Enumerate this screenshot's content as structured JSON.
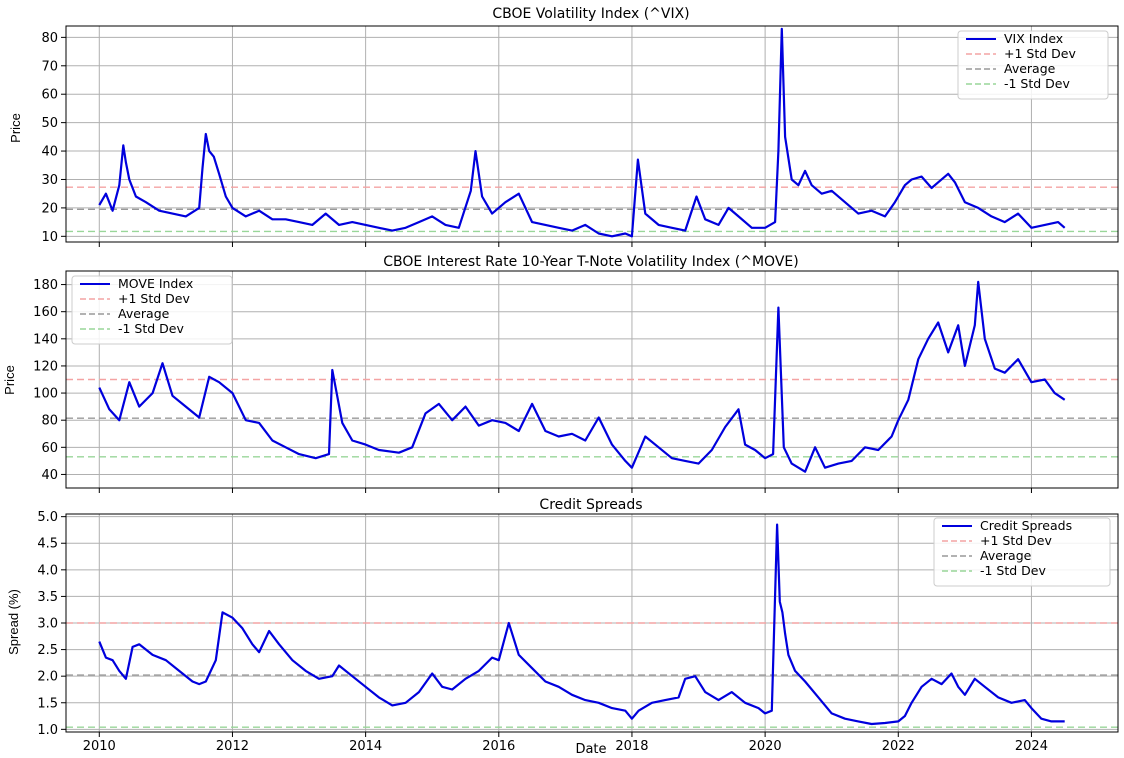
{
  "chart_data": [
    {
      "type": "line",
      "title": "CBOE Volatility Index (^VIX)",
      "xlabel": "",
      "ylabel": "Price",
      "xlim": [
        2009.5,
        2025.3
      ],
      "ylim": [
        8,
        84
      ],
      "yticks": [
        10,
        20,
        30,
        40,
        50,
        60,
        70,
        80
      ],
      "xticks": [
        2010,
        2012,
        2014,
        2016,
        2018,
        2020,
        2022,
        2024
      ],
      "show_xtick_labels": false,
      "grid": true,
      "legend_position": "upper right",
      "legend": [
        "VIX Index",
        "+1 Std Dev",
        "Average",
        "-1 Std Dev"
      ],
      "reference_lines": [
        {
          "name": "+1 Std Dev",
          "value": 27.3,
          "color": "#f4a3a3"
        },
        {
          "name": "Average",
          "value": 19.5,
          "color": "#999999"
        },
        {
          "name": "-1 Std Dev",
          "value": 11.7,
          "color": "#99d699"
        }
      ],
      "series": [
        {
          "name": "VIX Index",
          "color": "#0000dd",
          "x": [
            2010.0,
            2010.1,
            2010.2,
            2010.3,
            2010.36,
            2010.4,
            2010.45,
            2010.55,
            2010.7,
            2010.9,
            2011.1,
            2011.3,
            2011.5,
            2011.55,
            2011.6,
            2011.65,
            2011.72,
            2011.8,
            2011.9,
            2012.0,
            2012.2,
            2012.4,
            2012.6,
            2012.8,
            2013.0,
            2013.2,
            2013.4,
            2013.6,
            2013.8,
            2014.0,
            2014.2,
            2014.4,
            2014.6,
            2014.8,
            2015.0,
            2015.2,
            2015.4,
            2015.58,
            2015.65,
            2015.75,
            2015.9,
            2016.1,
            2016.3,
            2016.5,
            2016.7,
            2016.9,
            2017.1,
            2017.3,
            2017.5,
            2017.7,
            2017.9,
            2018.0,
            2018.09,
            2018.2,
            2018.4,
            2018.6,
            2018.8,
            2018.97,
            2019.1,
            2019.3,
            2019.45,
            2019.6,
            2019.8,
            2020.0,
            2020.15,
            2020.2,
            2020.25,
            2020.3,
            2020.4,
            2020.5,
            2020.6,
            2020.7,
            2020.85,
            2021.0,
            2021.2,
            2021.4,
            2021.6,
            2021.8,
            2021.95,
            2022.1,
            2022.2,
            2022.35,
            2022.5,
            2022.6,
            2022.75,
            2022.85,
            2023.0,
            2023.2,
            2023.4,
            2023.6,
            2023.8,
            2024.0,
            2024.2,
            2024.4,
            2024.5
          ],
          "values": [
            21,
            25,
            19,
            28,
            42,
            36,
            30,
            24,
            22,
            19,
            18,
            17,
            20,
            34,
            46,
            40,
            38,
            32,
            24,
            20,
            17,
            19,
            16,
            16,
            15,
            14,
            18,
            14,
            15,
            14,
            13,
            12,
            13,
            15,
            17,
            14,
            13,
            26,
            40,
            24,
            18,
            22,
            25,
            15,
            14,
            13,
            12,
            14,
            11,
            10,
            11,
            10,
            37,
            18,
            14,
            13,
            12,
            24,
            16,
            14,
            20,
            17,
            13,
            13,
            15,
            40,
            83,
            45,
            30,
            28,
            33,
            28,
            25,
            26,
            22,
            18,
            19,
            17,
            22,
            28,
            30,
            31,
            27,
            29,
            32,
            29,
            22,
            20,
            17,
            15,
            18,
            13,
            14,
            15,
            13
          ]
        }
      ]
    },
    {
      "type": "line",
      "title": "CBOE Interest Rate 10-Year T-Note Volatility Index (^MOVE)",
      "xlabel": "",
      "ylabel": "Price",
      "xlim": [
        2009.5,
        2025.3
      ],
      "ylim": [
        30,
        190
      ],
      "yticks": [
        40,
        60,
        80,
        100,
        120,
        140,
        160,
        180
      ],
      "xticks": [
        2010,
        2012,
        2014,
        2016,
        2018,
        2020,
        2022,
        2024
      ],
      "show_xtick_labels": false,
      "grid": true,
      "legend_position": "upper left",
      "legend": [
        "MOVE Index",
        "+1 Std Dev",
        "Average",
        "-1 Std Dev"
      ],
      "reference_lines": [
        {
          "name": "+1 Std Dev",
          "value": 110,
          "color": "#f4a3a3"
        },
        {
          "name": "Average",
          "value": 81.5,
          "color": "#999999"
        },
        {
          "name": "-1 Std Dev",
          "value": 53,
          "color": "#99d699"
        }
      ],
      "series": [
        {
          "name": "MOVE Index",
          "color": "#0000dd",
          "x": [
            2010.0,
            2010.15,
            2010.3,
            2010.45,
            2010.6,
            2010.8,
            2010.95,
            2011.1,
            2011.3,
            2011.5,
            2011.65,
            2011.8,
            2012.0,
            2012.2,
            2012.4,
            2012.6,
            2012.8,
            2013.0,
            2013.25,
            2013.45,
            2013.5,
            2013.65,
            2013.8,
            2014.0,
            2014.2,
            2014.5,
            2014.7,
            2014.9,
            2015.1,
            2015.3,
            2015.5,
            2015.7,
            2015.9,
            2016.1,
            2016.3,
            2016.5,
            2016.7,
            2016.9,
            2017.1,
            2017.3,
            2017.5,
            2017.7,
            2017.9,
            2018.0,
            2018.2,
            2018.4,
            2018.6,
            2018.8,
            2019.0,
            2019.2,
            2019.4,
            2019.6,
            2019.7,
            2019.85,
            2020.0,
            2020.12,
            2020.2,
            2020.28,
            2020.4,
            2020.6,
            2020.75,
            2020.9,
            2021.1,
            2021.3,
            2021.5,
            2021.7,
            2021.9,
            2022.0,
            2022.15,
            2022.3,
            2022.45,
            2022.6,
            2022.75,
            2022.9,
            2023.0,
            2023.15,
            2023.2,
            2023.3,
            2023.45,
            2023.6,
            2023.8,
            2024.0,
            2024.2,
            2024.35,
            2024.5
          ],
          "values": [
            104,
            88,
            80,
            108,
            90,
            100,
            122,
            98,
            90,
            82,
            112,
            108,
            100,
            80,
            78,
            65,
            60,
            55,
            52,
            55,
            117,
            78,
            65,
            62,
            58,
            56,
            60,
            85,
            92,
            80,
            90,
            76,
            80,
            78,
            72,
            92,
            72,
            68,
            70,
            65,
            82,
            62,
            50,
            45,
            68,
            60,
            52,
            50,
            48,
            58,
            75,
            88,
            62,
            58,
            52,
            55,
            163,
            60,
            48,
            42,
            60,
            45,
            48,
            50,
            60,
            58,
            68,
            80,
            95,
            125,
            140,
            152,
            130,
            150,
            120,
            150,
            182,
            140,
            118,
            115,
            125,
            108,
            110,
            100,
            95
          ]
        }
      ]
    },
    {
      "type": "line",
      "title": "Credit Spreads",
      "xlabel": "Date",
      "ylabel": "Spread (%)",
      "xlim": [
        2009.5,
        2025.3
      ],
      "ylim": [
        0.95,
        5.05
      ],
      "yticks": [
        1.0,
        1.5,
        2.0,
        2.5,
        3.0,
        3.5,
        4.0,
        4.5,
        5.0
      ],
      "ytick_labels": [
        "1.0",
        "1.5",
        "2.0",
        "2.5",
        "3.0",
        "3.5",
        "4.0",
        "4.5",
        "5.0"
      ],
      "xticks": [
        2010,
        2012,
        2014,
        2016,
        2018,
        2020,
        2022,
        2024
      ],
      "xtick_labels": [
        "2010",
        "2012",
        "2014",
        "2016",
        "2018",
        "2020",
        "2022",
        "2024"
      ],
      "show_xtick_labels": true,
      "grid": true,
      "legend_position": "upper right",
      "legend": [
        "Credit Spreads",
        "+1 Std Dev",
        "Average",
        "-1 Std Dev"
      ],
      "reference_lines": [
        {
          "name": "+1 Std Dev",
          "value": 3.0,
          "color": "#f4a3a3"
        },
        {
          "name": "Average",
          "value": 2.02,
          "color": "#999999"
        },
        {
          "name": "-1 Std Dev",
          "value": 1.04,
          "color": "#99d699"
        }
      ],
      "series": [
        {
          "name": "Credit Spreads",
          "color": "#0000dd",
          "x": [
            2010.0,
            2010.1,
            2010.2,
            2010.3,
            2010.4,
            2010.5,
            2010.6,
            2010.8,
            2011.0,
            2011.2,
            2011.4,
            2011.5,
            2011.6,
            2011.75,
            2011.85,
            2012.0,
            2012.15,
            2012.3,
            2012.4,
            2012.55,
            2012.7,
            2012.9,
            2013.1,
            2013.3,
            2013.5,
            2013.6,
            2013.8,
            2014.0,
            2014.2,
            2014.4,
            2014.6,
            2014.8,
            2015.0,
            2015.15,
            2015.3,
            2015.5,
            2015.7,
            2015.9,
            2016.0,
            2016.15,
            2016.3,
            2016.5,
            2016.7,
            2016.9,
            2017.1,
            2017.3,
            2017.5,
            2017.7,
            2017.9,
            2018.0,
            2018.1,
            2018.3,
            2018.5,
            2018.7,
            2018.8,
            2018.95,
            2019.1,
            2019.3,
            2019.5,
            2019.7,
            2019.9,
            2020.0,
            2020.1,
            2020.18,
            2020.22,
            2020.26,
            2020.3,
            2020.35,
            2020.45,
            2020.6,
            2020.8,
            2021.0,
            2021.2,
            2021.4,
            2021.6,
            2021.8,
            2022.0,
            2022.1,
            2022.2,
            2022.35,
            2022.5,
            2022.65,
            2022.8,
            2022.9,
            2023.0,
            2023.15,
            2023.3,
            2023.5,
            2023.7,
            2023.9,
            2024.0,
            2024.15,
            2024.3,
            2024.5
          ],
          "values": [
            2.65,
            2.35,
            2.3,
            2.1,
            1.95,
            2.55,
            2.6,
            2.4,
            2.3,
            2.1,
            1.9,
            1.85,
            1.9,
            2.3,
            3.2,
            3.1,
            2.9,
            2.6,
            2.45,
            2.85,
            2.6,
            2.3,
            2.1,
            1.95,
            2.0,
            2.2,
            2.0,
            1.8,
            1.6,
            1.45,
            1.5,
            1.7,
            2.05,
            1.8,
            1.75,
            1.95,
            2.1,
            2.35,
            2.3,
            3.0,
            2.4,
            2.15,
            1.9,
            1.8,
            1.65,
            1.55,
            1.5,
            1.4,
            1.35,
            1.2,
            1.35,
            1.5,
            1.55,
            1.6,
            1.95,
            2.0,
            1.7,
            1.55,
            1.7,
            1.5,
            1.4,
            1.3,
            1.35,
            4.85,
            3.4,
            3.2,
            2.8,
            2.4,
            2.1,
            1.9,
            1.6,
            1.3,
            1.2,
            1.15,
            1.1,
            1.12,
            1.15,
            1.25,
            1.5,
            1.8,
            1.95,
            1.85,
            2.05,
            1.8,
            1.65,
            1.95,
            1.8,
            1.6,
            1.5,
            1.55,
            1.4,
            1.2,
            1.15,
            1.15
          ]
        }
      ]
    }
  ]
}
